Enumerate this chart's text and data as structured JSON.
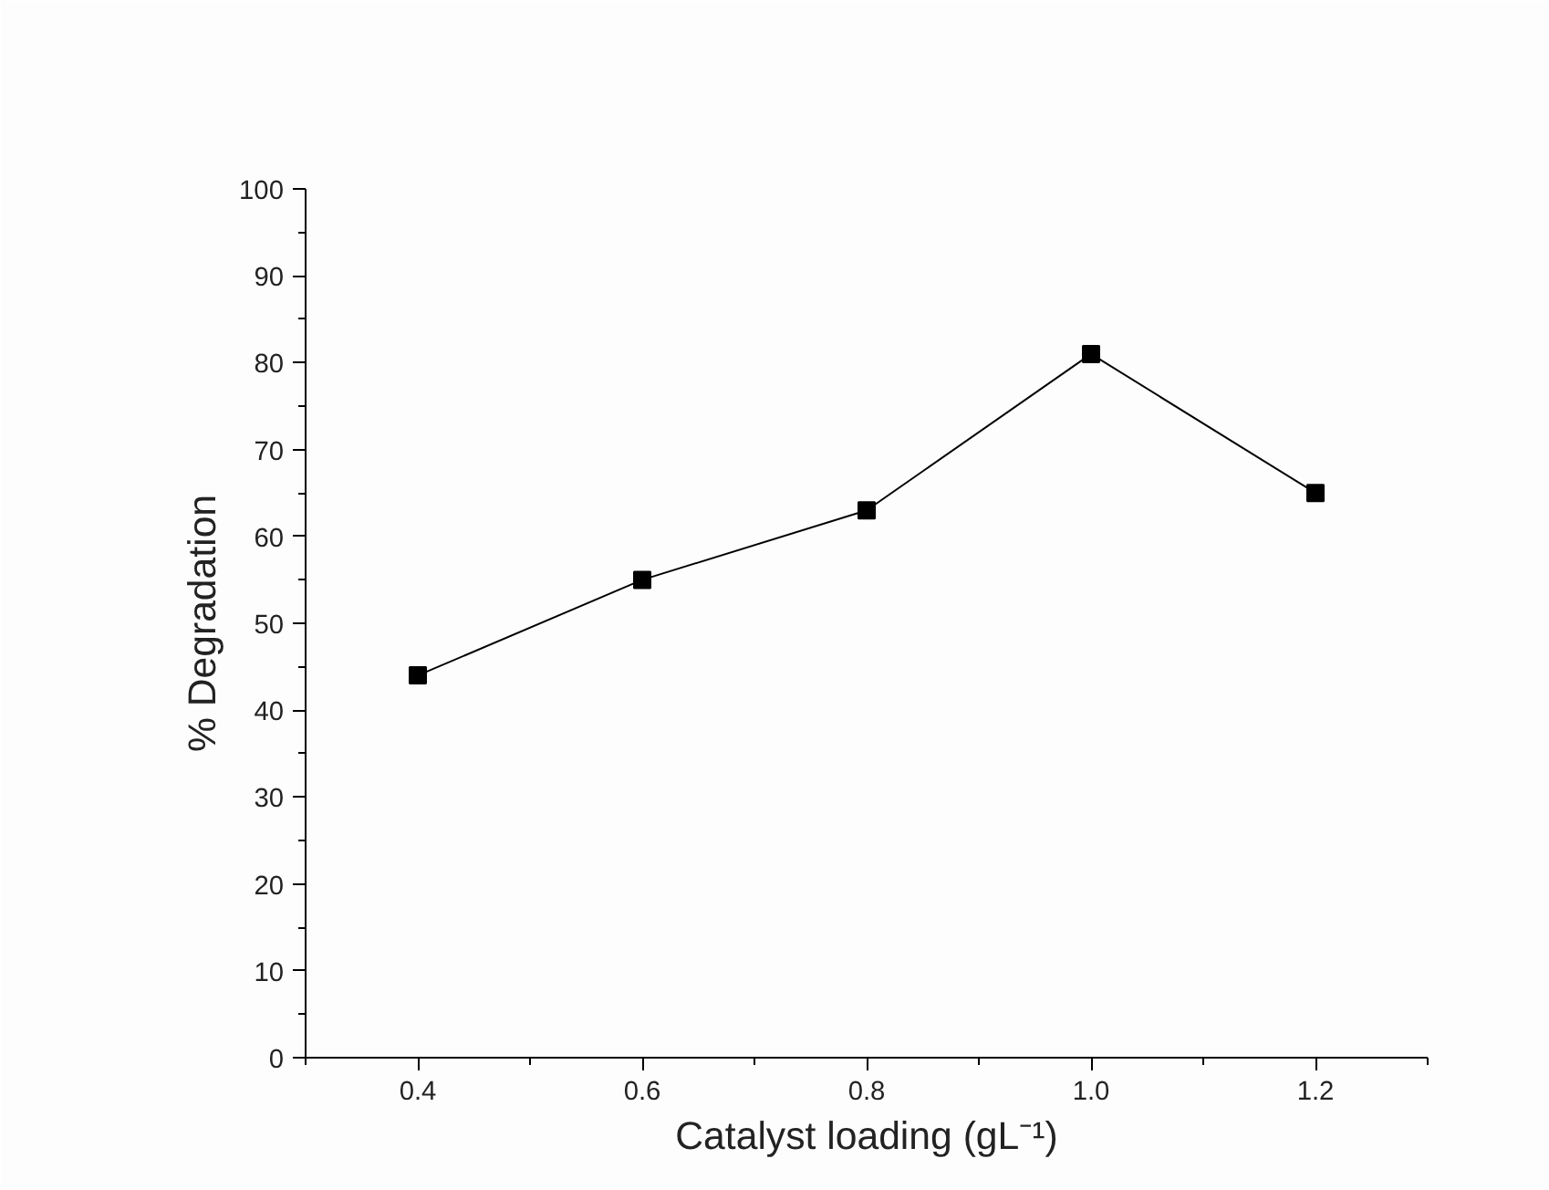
{
  "chart_data": {
    "type": "line",
    "xlabel": "Catalyst loading (gL⁻¹)",
    "ylabel": "% Degradation",
    "x": [
      0.4,
      0.6,
      0.8,
      1.0,
      1.2
    ],
    "series": [
      {
        "color": "#000000",
        "values": [
          44,
          55,
          63,
          81,
          65
        ]
      }
    ],
    "xlim": [
      0.3,
      1.3
    ],
    "xticks": [
      {
        "value": 0.3,
        "label": null
      },
      0.4,
      {
        "value": 0.5,
        "label": null
      },
      0.6,
      {
        "value": 0.7,
        "label": null
      },
      0.8,
      {
        "value": 0.9,
        "label": null
      },
      {
        "value": 1.0,
        "label": "1.0"
      },
      {
        "value": 1.1,
        "label": null
      },
      1.2,
      {
        "value": 1.3,
        "label": null
      }
    ],
    "ylim": [
      0,
      100
    ],
    "yticks": [
      0,
      {
        "value": 5,
        "label": null
      },
      10,
      {
        "value": 15,
        "label": null
      },
      20,
      {
        "value": 25,
        "label": null
      },
      30,
      {
        "value": 35,
        "label": null
      },
      40,
      {
        "value": 45,
        "label": null
      },
      50,
      {
        "value": 55,
        "label": null
      },
      60,
      {
        "value": 65,
        "label": null
      },
      70,
      {
        "value": 75,
        "label": null
      },
      80,
      {
        "value": 85,
        "label": null
      },
      90,
      {
        "value": 95,
        "label": null
      },
      100
    ],
    "grid": false,
    "marker": "square",
    "line_style": "solid"
  }
}
